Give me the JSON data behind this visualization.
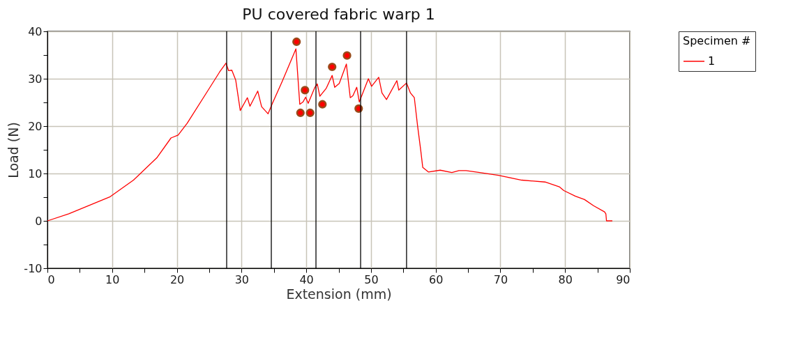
{
  "chart_data": {
    "type": "line",
    "title": "PU covered fabric warp 1",
    "xlabel": "Extension (mm)",
    "ylabel": "Load (N)",
    "legend_title": "Specimen #",
    "xlim": [
      0,
      90
    ],
    "ylim": [
      -10,
      40
    ],
    "xticks": [
      0,
      {
        "value": 5,
        "label": null
      },
      10,
      {
        "value": 15,
        "label": null
      },
      20,
      {
        "value": 25,
        "label": null
      },
      30,
      {
        "value": 35,
        "label": null
      },
      40,
      {
        "value": 45,
        "label": null
      },
      50,
      {
        "value": 55,
        "label": null
      },
      60,
      {
        "value": 65,
        "label": null
      },
      70,
      {
        "value": 75,
        "label": null
      },
      80,
      {
        "value": 85,
        "label": null
      },
      90
    ],
    "yticks": [
      -10,
      {
        "value": -5,
        "label": null
      },
      0,
      {
        "value": 5,
        "label": null
      },
      10,
      {
        "value": 15,
        "label": null
      },
      20,
      {
        "value": 25,
        "label": null
      },
      30,
      {
        "value": 35,
        "label": null
      },
      40
    ],
    "grid": true,
    "legend": "right",
    "marker": "none",
    "line_style": "solid",
    "ref_lines": [
      {
        "axis": "x",
        "value": 27.7,
        "color": "#000000"
      },
      {
        "axis": "x",
        "value": 34.6,
        "color": "#000000"
      },
      {
        "axis": "x",
        "value": 41.5,
        "color": "#000000"
      },
      {
        "axis": "x",
        "value": 48.4,
        "color": "#000000"
      },
      {
        "axis": "x",
        "value": 55.5,
        "color": "#000000"
      }
    ],
    "series": [
      {
        "name": "1",
        "type": "line",
        "color": "#ff0000",
        "x": [
          0,
          3.3,
          9.7,
          13.3,
          16.9,
          19.1,
          20.2,
          21.6,
          24.8,
          26.6,
          27.6,
          28.0,
          28.5,
          29.1,
          29.8,
          30.9,
          31.3,
          32.5,
          33.1,
          34.1,
          34.7,
          36.3,
          38.4,
          39.0,
          39.5,
          39.9,
          40.3,
          41.3,
          41.7,
          42.1,
          43.1,
          44.0,
          44.4,
          45.1,
          46.2,
          46.8,
          47.2,
          47.8,
          48.2,
          49.6,
          50.1,
          51.2,
          51.7,
          52.4,
          54.0,
          54.3,
          55.5,
          56.1,
          56.7,
          57.2,
          57.7,
          58.0,
          58.9,
          60.7,
          62.5,
          63.6,
          64.7,
          66.8,
          69.7,
          73.3,
          76.9,
          79.1,
          79.8,
          81.6,
          83.0,
          84.4,
          86.1,
          86.3,
          86.4,
          87.3
        ],
        "values": [
          0,
          1.5,
          5.1,
          8.6,
          13.3,
          17.5,
          18.1,
          20.6,
          27.5,
          31.4,
          33.3,
          31.7,
          31.8,
          29.7,
          23.3,
          26.0,
          24.2,
          27.4,
          24.1,
          22.6,
          24.6,
          29.5,
          36.3,
          24.6,
          25.1,
          26.1,
          24.8,
          28.1,
          28.9,
          26.3,
          28.0,
          30.7,
          28.2,
          29.0,
          33.1,
          26.0,
          26.4,
          28.2,
          25.1,
          30.0,
          28.4,
          30.3,
          27.0,
          25.6,
          29.6,
          27.6,
          29.1,
          27.0,
          26.0,
          20.1,
          14.8,
          11.3,
          10.3,
          10.7,
          10.2,
          10.6,
          10.6,
          10.2,
          9.6,
          8.6,
          8.2,
          7.2,
          6.4,
          5.2,
          4.5,
          3.2,
          1.9,
          1.5,
          0,
          0
        ]
      },
      {
        "type": "scatter",
        "marker": "circle",
        "color": "#ff0000",
        "x": [
          38.5,
          39.8,
          39.1,
          40.6,
          42.5,
          44.0,
          46.3,
          48.1
        ],
        "values": [
          37.8,
          27.6,
          22.8,
          22.8,
          24.6,
          32.5,
          34.9,
          23.7
        ]
      }
    ]
  }
}
